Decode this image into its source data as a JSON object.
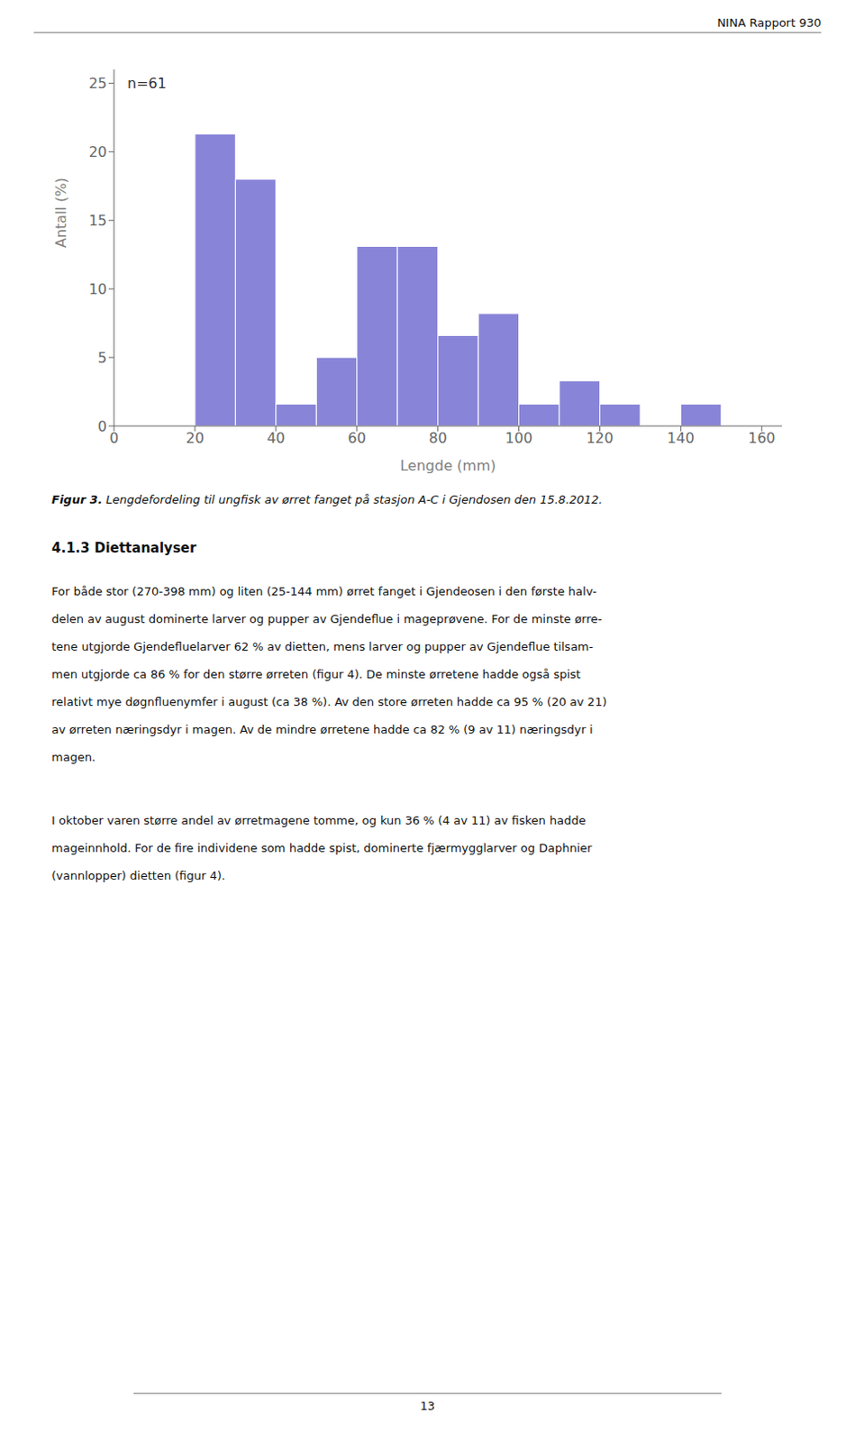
{
  "chart_data": {
    "type": "histogram",
    "header": "NINA Rapport 930",
    "x_label": "Lengde (mm)",
    "y_label": "Antall (%)",
    "bins": [
      0,
      10,
      20,
      30,
      40,
      50,
      60,
      70,
      80,
      90,
      100,
      110,
      120,
      130,
      140,
      150,
      160
    ],
    "values": [
      0,
      0,
      21.3,
      18.0,
      1.6,
      5.0,
      13.1,
      13.1,
      6.6,
      8.2,
      1.6,
      3.3,
      1.6,
      0,
      1.6,
      0
    ],
    "xlim": [
      0,
      165
    ],
    "ylim": [
      0,
      26
    ],
    "xticks": [
      0,
      20,
      40,
      60,
      80,
      100,
      120,
      140,
      160
    ],
    "yticks": [
      0,
      5,
      10,
      15,
      20,
      25
    ],
    "annotations": [
      "n=61"
    ],
    "caption": [
      "Figur 3.",
      " Lengdefordeling til ungfisk av ørret fanget på stasjon A-C i Gjendosen den 15.8.2012."
    ],
    "section_title": "4.1.3 Diettanalyser",
    "paragraphs": [
      [
        "For både stor (270-398 mm) og liten (25-144 mm) ørret fanget i Gjendeosen i den første halv-",
        "delen av august dominerte larver og pupper av Gjendeflue i mageprøvene. For de minste ørre-",
        "tene utgjorde Gjendefluelarver 62 % av dietten, mens larver og pupper av Gjendeflue tilsam-",
        "men utgjorde ca 86 % for den større ørreten (figur 4). De minste ørretene hadde også spist",
        "relativt mye døgnfluenymfer i august (ca 38 %). Av den store ørreten hadde ca 95 % (20 av 21)",
        "av ørreten næringsdyr i magen. Av de mindre ørretene hadde ca 82 % (9 av 11) næringsdyr i",
        "magen."
      ],
      [
        "I oktober varen større andel av ørretmagene tomme, og kun 36 % (4 av 11) av fisken hadde",
        "mageinnhold. For de fire individene som hadde spist, dominerte fjærmygglarver og Daphnier",
        "(vannlopper) dietten (figur 4)."
      ]
    ],
    "page_number": "13"
  }
}
